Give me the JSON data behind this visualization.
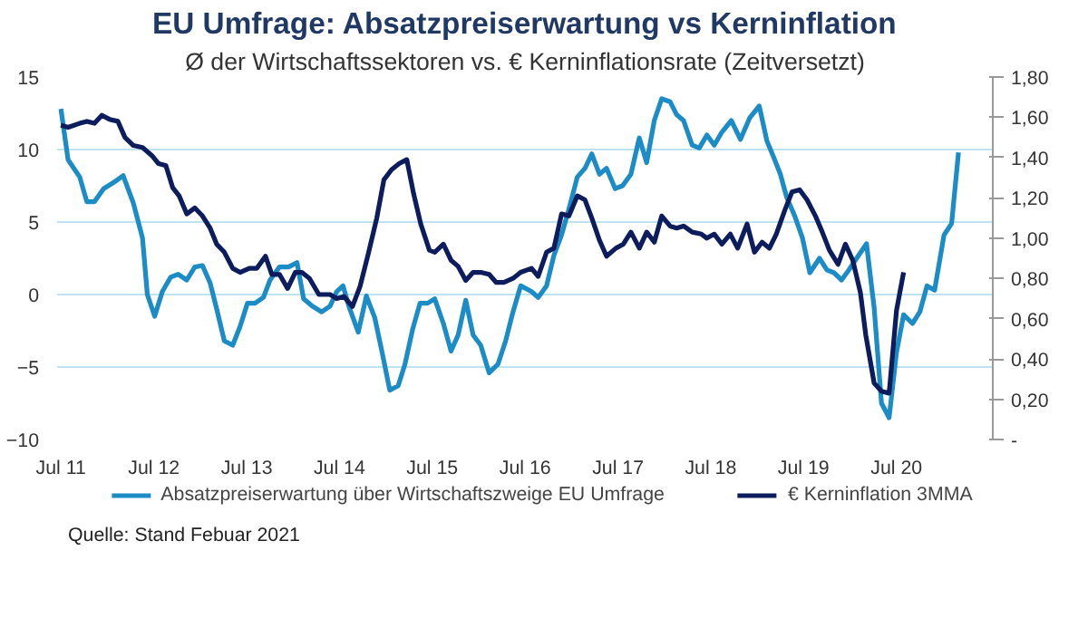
{
  "chart_data": {
    "type": "line",
    "title": "EU Umfrage: Absatzpreiserwartung vs Kerninflation",
    "subtitle": "Ø der Wirtschaftssektoren vs. € Kerninflationsrate (Zeitversetzt)",
    "annotations": [
      "Quelle: Stand Febuar 2021"
    ],
    "xlim": [
      "2011-06-16",
      "2021-07-15"
    ],
    "xticks": [
      {
        "value": "2011-07",
        "label": "Jul 11"
      },
      {
        "value": "2012-07",
        "label": "Jul 12"
      },
      {
        "value": "2013-07",
        "label": "Jul 13"
      },
      {
        "value": "2014-07",
        "label": "Jul 14"
      },
      {
        "value": "2015-07",
        "label": "Jul 15"
      },
      {
        "value": "2016-07",
        "label": "Jul 16"
      },
      {
        "value": "2017-07",
        "label": "Jul 17"
      },
      {
        "value": "2018-07",
        "label": "Jul 18"
      },
      {
        "value": "2019-07",
        "label": "Jul 19"
      },
      {
        "value": "2020-07",
        "label": "Jul 20"
      }
    ],
    "ylim": [
      -10,
      15
    ],
    "yticks": [
      -10,
      -5,
      0,
      5,
      10,
      15
    ],
    "y2lim": [
      0,
      1.8
    ],
    "y2ticks": [
      {
        "value": 0,
        "label": "-"
      },
      {
        "value": 0.2,
        "label": "0,20"
      },
      {
        "value": 0.4,
        "label": "0,40"
      },
      {
        "value": 0.6,
        "label": "0,60"
      },
      {
        "value": 0.8,
        "label": "0,80"
      },
      {
        "value": 1.0,
        "label": "1,00"
      },
      {
        "value": 1.2,
        "label": "1,20"
      },
      {
        "value": 1.4,
        "label": "1,40"
      },
      {
        "value": 1.6,
        "label": "1,60"
      },
      {
        "value": 1.8,
        "label": "1,80"
      }
    ],
    "grid": "y",
    "legend": "bottom",
    "line_style": "solid",
    "series": [
      {
        "name": "Absatzpreiserwartung über Wirtschaftszweige EU Umfrage",
        "color": "#1b8cc6",
        "x": [
          "2011-07-01",
          "2011-07-29",
          "2011-09-13",
          "2011-10-11",
          "2011-11-10",
          "2011-12-16",
          "2012-01-22",
          "2012-03-02",
          "2012-04-11",
          "2012-05-17",
          "2012-06-05",
          "2012-07-04",
          "2012-08-03",
          "2012-09-05",
          "2012-10-04",
          "2012-11-07",
          "2012-12-09",
          "2013-01-08",
          "2013-02-07",
          "2013-03-05",
          "2013-04-04",
          "2013-05-07",
          "2013-06-05",
          "2013-07-04",
          "2013-08-03",
          "2013-09-05",
          "2013-10-01",
          "2013-11-07",
          "2013-12-13",
          "2014-01-15",
          "2014-02-10",
          "2014-03-16",
          "2014-04-22",
          "2014-05-25",
          "2014-06-20",
          "2014-07-15",
          "2014-08-07",
          "2014-09-13",
          "2014-10-15",
          "2014-11-17",
          "2014-12-16",
          "2015-01-15",
          "2015-02-17",
          "2015-03-16",
          "2015-04-15",
          "2015-05-14",
          "2015-06-13",
          "2015-07-11",
          "2015-08-14",
          "2015-09-13",
          "2015-10-11",
          "2015-11-10",
          "2015-12-09",
          "2016-01-08",
          "2016-02-10",
          "2016-03-16",
          "2016-04-15",
          "2016-05-14",
          "2016-06-13",
          "2016-07-26",
          "2016-08-21",
          "2016-09-23",
          "2016-10-22",
          "2016-11-21",
          "2016-12-20",
          "2017-01-22",
          "2017-02-21",
          "2017-03-20",
          "2017-04-19",
          "2017-05-17",
          "2017-06-20",
          "2017-07-19",
          "2017-08-21",
          "2017-09-23",
          "2017-10-22",
          "2017-11-21",
          "2017-12-20",
          "2018-01-22",
          "2018-02-17",
          "2018-03-16",
          "2018-04-19",
          "2018-05-17",
          "2018-06-16",
          "2018-07-15",
          "2018-08-14",
          "2018-09-20",
          "2018-10-26",
          "2018-12-02",
          "2019-01-08",
          "2019-02-07",
          "2019-03-05",
          "2019-04-01",
          "2019-04-26",
          "2019-05-28",
          "2019-06-27",
          "2019-07-26",
          "2019-09-02",
          "2019-10-01",
          "2019-10-29",
          "2019-11-28",
          "2019-12-27",
          "2020-02-03",
          "2020-03-05",
          "2020-04-04",
          "2020-05-03",
          "2020-06-02",
          "2020-07-01",
          "2020-07-29",
          "2020-09-02",
          "2020-10-01",
          "2020-10-29",
          "2020-11-28",
          "2021-01-04",
          "2021-02-03",
          "2021-03-02"
        ],
        "values": [
          12.8,
          9.3,
          8.1,
          6.4,
          6.4,
          7.3,
          7.7,
          8.2,
          6.3,
          3.9,
          0.0,
          -1.5,
          0.2,
          1.2,
          1.4,
          1.0,
          1.9,
          2.0,
          0.8,
          -1.0,
          -3.2,
          -3.5,
          -2.2,
          -0.6,
          -0.6,
          -0.2,
          1.0,
          1.9,
          1.9,
          2.2,
          -0.3,
          -0.8,
          -1.2,
          -0.8,
          0.2,
          0.6,
          -0.8,
          -2.6,
          -0.1,
          -1.6,
          -4.0,
          -6.6,
          -6.3,
          -4.8,
          -2.4,
          -0.6,
          -0.6,
          -0.3,
          -2.0,
          -3.9,
          -2.8,
          -0.4,
          -2.8,
          -3.5,
          -5.4,
          -4.8,
          -3.2,
          -1.2,
          0.6,
          0.2,
          -0.2,
          0.6,
          2.7,
          4.1,
          5.9,
          8.1,
          8.7,
          9.7,
          8.3,
          8.7,
          7.3,
          7.5,
          8.3,
          10.8,
          9.1,
          12.0,
          13.5,
          13.3,
          12.4,
          12.0,
          10.3,
          10.1,
          11.0,
          10.3,
          11.2,
          12.0,
          10.7,
          12.2,
          13.0,
          10.6,
          9.5,
          8.3,
          6.7,
          5.4,
          3.9,
          1.5,
          2.5,
          1.7,
          1.5,
          1.0,
          1.7,
          2.7,
          3.5,
          -0.9,
          -7.5,
          -8.5,
          -4.0,
          -1.4,
          -2.0,
          -1.2,
          0.6,
          0.3,
          4.1,
          4.9,
          9.8
        ]
      },
      {
        "name": "€ Kerninflation 3MMA",
        "color": "#0c1c5c",
        "axis": "y2",
        "x": [
          "2011-07-01",
          "2011-07-29",
          "2011-09-13",
          "2011-10-11",
          "2011-11-10",
          "2011-12-09",
          "2012-01-08",
          "2012-02-10",
          "2012-03-09",
          "2012-04-11",
          "2012-05-17",
          "2012-06-23",
          "2012-07-19",
          "2012-08-17",
          "2012-09-13",
          "2012-10-08",
          "2012-11-07",
          "2012-12-09",
          "2013-01-08",
          "2013-02-07",
          "2013-03-05",
          "2013-04-04",
          "2013-05-07",
          "2013-06-05",
          "2013-07-11",
          "2013-08-10",
          "2013-09-13",
          "2013-10-08",
          "2013-11-07",
          "2013-12-09",
          "2014-01-08",
          "2014-02-03",
          "2014-03-05",
          "2014-04-11",
          "2014-05-25",
          "2014-06-20",
          "2014-07-19",
          "2014-08-21",
          "2014-09-20",
          "2014-10-22",
          "2014-11-25",
          "2014-12-23",
          "2015-01-22",
          "2015-02-21",
          "2015-03-23",
          "2015-04-19",
          "2015-05-17",
          "2015-06-20",
          "2015-07-11",
          "2015-08-14",
          "2015-09-13",
          "2015-10-11",
          "2015-11-10",
          "2015-12-09",
          "2016-01-08",
          "2016-02-10",
          "2016-03-09",
          "2016-04-08",
          "2016-05-14",
          "2016-06-13",
          "2016-07-26",
          "2016-08-21",
          "2016-09-23",
          "2016-10-22",
          "2016-11-21",
          "2016-12-20",
          "2017-01-22",
          "2017-02-21",
          "2017-03-20",
          "2017-04-19",
          "2017-05-17",
          "2017-06-23",
          "2017-07-22",
          "2017-08-21",
          "2017-09-23",
          "2017-10-22",
          "2017-11-21",
          "2017-12-20",
          "2018-01-22",
          "2018-02-17",
          "2018-03-16",
          "2018-04-19",
          "2018-05-25",
          "2018-06-16",
          "2018-07-15",
          "2018-08-14",
          "2018-09-16",
          "2018-10-15",
          "2018-11-21",
          "2018-12-20",
          "2019-01-19",
          "2019-02-17",
          "2019-03-16",
          "2019-04-19",
          "2019-05-17",
          "2019-06-16",
          "2019-07-15",
          "2019-08-17",
          "2019-09-13",
          "2019-10-11",
          "2019-11-14",
          "2019-12-13",
          "2020-01-11",
          "2020-02-10",
          "2020-03-02",
          "2020-04-04",
          "2020-05-03",
          "2020-06-02",
          "2020-07-01",
          "2020-07-29"
        ],
        "values": [
          1.56,
          1.55,
          1.57,
          1.58,
          1.57,
          1.61,
          1.59,
          1.58,
          1.5,
          1.46,
          1.45,
          1.41,
          1.37,
          1.36,
          1.25,
          1.21,
          1.12,
          1.15,
          1.11,
          1.05,
          0.97,
          0.93,
          0.85,
          0.83,
          0.85,
          0.85,
          0.91,
          0.82,
          0.82,
          0.75,
          0.83,
          0.83,
          0.8,
          0.72,
          0.72,
          0.7,
          0.71,
          0.66,
          0.76,
          0.92,
          1.1,
          1.29,
          1.34,
          1.37,
          1.39,
          1.22,
          1.07,
          0.94,
          0.93,
          0.97,
          0.89,
          0.86,
          0.79,
          0.83,
          0.83,
          0.82,
          0.78,
          0.78,
          0.8,
          0.83,
          0.85,
          0.81,
          0.93,
          0.95,
          1.12,
          1.11,
          1.21,
          1.19,
          1.1,
          0.99,
          0.91,
          0.95,
          0.97,
          1.03,
          0.95,
          1.03,
          0.98,
          1.11,
          1.06,
          1.05,
          1.06,
          1.03,
          1.02,
          1.0,
          1.02,
          0.97,
          1.02,
          0.95,
          1.07,
          0.93,
          0.98,
          0.95,
          1.02,
          1.14,
          1.23,
          1.24,
          1.19,
          1.11,
          1.03,
          0.94,
          0.87,
          0.97,
          0.89,
          0.73,
          0.52,
          0.28,
          0.24,
          0.23,
          0.64,
          0.83
        ]
      }
    ]
  }
}
